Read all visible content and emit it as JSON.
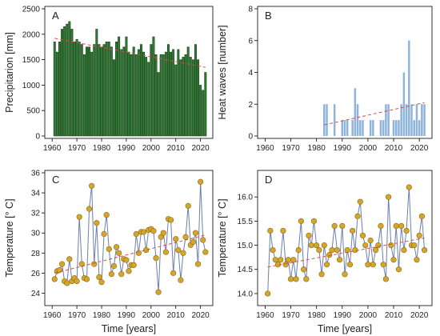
{
  "chart_data": [
    {
      "panel": "A",
      "type": "bar",
      "ylabel": "Precipitarion [mm]",
      "xlabel": "",
      "xlim": [
        1958,
        2024
      ],
      "ylim": [
        0,
        2500
      ],
      "xticks": [
        1960,
        1970,
        1980,
        1990,
        2000,
        2010,
        2020
      ],
      "yticks": [
        0,
        500,
        1000,
        1500,
        2000,
        2500
      ],
      "bar_color": "#2e7d32",
      "bar_edge": "#0f2e0f",
      "trend_color": "#d94a4a",
      "x": [
        1961,
        1962,
        1963,
        1964,
        1965,
        1966,
        1967,
        1968,
        1969,
        1970,
        1971,
        1972,
        1973,
        1974,
        1975,
        1976,
        1977,
        1978,
        1979,
        1980,
        1981,
        1982,
        1983,
        1984,
        1985,
        1986,
        1987,
        1988,
        1989,
        1990,
        1991,
        1992,
        1993,
        1994,
        1995,
        1996,
        1997,
        1998,
        1999,
        2000,
        2001,
        2002,
        2003,
        2004,
        2005,
        2006,
        2007,
        2008,
        2009,
        2010,
        2011,
        2012,
        2013,
        2014,
        2015,
        2016,
        2017,
        2018,
        2019,
        2020,
        2021,
        2022
      ],
      "values": [
        1850,
        1650,
        1850,
        2100,
        2150,
        2200,
        2250,
        2100,
        1850,
        1900,
        1850,
        1800,
        1600,
        1750,
        1750,
        1650,
        1800,
        2100,
        1800,
        1750,
        1800,
        1850,
        1850,
        1750,
        1500,
        1850,
        1950,
        1700,
        1750,
        1950,
        1650,
        1600,
        1750,
        1600,
        1700,
        1800,
        1650,
        1550,
        1450,
        1800,
        1950,
        1600,
        1250,
        1600,
        1600,
        1650,
        1800,
        1650,
        1700,
        1400,
        1700,
        1500,
        1550,
        1600,
        1750,
        1550,
        1500,
        1800,
        1500,
        1000,
        900,
        1250
      ],
      "trend": {
        "x": [
          1961,
          2022
        ],
        "y": [
          1920,
          1350
        ]
      }
    },
    {
      "panel": "B",
      "type": "bar",
      "ylabel": "Heat waves [number]",
      "xlabel": "",
      "xlim": [
        1958,
        2024
      ],
      "ylim": [
        0,
        8
      ],
      "xticks": [
        1960,
        1970,
        1980,
        1990,
        2000,
        2010,
        2020
      ],
      "yticks": [
        0,
        2,
        4,
        6,
        8
      ],
      "bar_color": "#8fb4db",
      "trend_color": "#d94a4a",
      "x": [
        1983,
        1984,
        1985,
        1986,
        1987,
        1988,
        1989,
        1990,
        1991,
        1992,
        1993,
        1994,
        1995,
        1996,
        1997,
        1998,
        1999,
        2000,
        2001,
        2002,
        2003,
        2004,
        2005,
        2006,
        2007,
        2008,
        2009,
        2010,
        2011,
        2012,
        2013,
        2014,
        2015,
        2016,
        2017,
        2018,
        2019,
        2020,
        2021,
        2022
      ],
      "values": [
        2,
        2,
        0,
        0,
        2,
        0,
        0,
        1,
        1,
        1,
        0,
        1,
        3,
        2,
        1,
        1,
        0,
        0,
        1,
        1,
        0,
        0,
        1,
        1,
        2,
        2,
        0,
        1,
        1,
        1,
        2,
        4,
        2,
        6,
        2,
        1,
        2,
        1,
        2,
        2
      ],
      "trend": {
        "x": [
          1983,
          2022
        ],
        "y": [
          0.7,
          2.1
        ]
      }
    },
    {
      "panel": "C",
      "type": "line",
      "ylabel": "Temperature [° C]",
      "xlabel": "Time [years]",
      "xlim": [
        1958,
        2024
      ],
      "ylim": [
        23,
        36
      ],
      "xticks": [
        1960,
        1970,
        1980,
        1990,
        2000,
        2010,
        2020
      ],
      "yticks": [
        24,
        26,
        28,
        30,
        32,
        34,
        36
      ],
      "line_color": "#6c7fae",
      "marker_fill": "#d4a72c",
      "marker_edge": "#8a6a10",
      "trend_color": "#d94a4a",
      "x": [
        1961,
        1962,
        1963,
        1964,
        1965,
        1966,
        1967,
        1968,
        1969,
        1970,
        1971,
        1972,
        1973,
        1974,
        1975,
        1976,
        1977,
        1978,
        1979,
        1980,
        1981,
        1982,
        1983,
        1984,
        1985,
        1986,
        1987,
        1988,
        1989,
        1990,
        1991,
        1992,
        1993,
        1994,
        1995,
        1996,
        1997,
        1998,
        1999,
        2000,
        2001,
        2002,
        2003,
        2004,
        2005,
        2006,
        2007,
        2008,
        2009,
        2010,
        2011,
        2012,
        2013,
        2014,
        2015,
        2016,
        2017,
        2018,
        2019,
        2020,
        2021,
        2022
      ],
      "values": [
        25.4,
        26.2,
        26.3,
        26.9,
        25.2,
        25.0,
        27.4,
        25.2,
        25.5,
        25.2,
        31.6,
        26.9,
        25.5,
        25.4,
        32.4,
        34.7,
        26.9,
        31.0,
        25.6,
        25.1,
        29.9,
        31.8,
        28.4,
        25.9,
        26.7,
        28.6,
        28.0,
        25.9,
        27.4,
        27.3,
        26.2,
        26.8,
        26.8,
        29.9,
        28.0,
        30.1,
        30.1,
        28.3,
        30.3,
        30.4,
        30.2,
        27.5,
        24.1,
        29.6,
        30.0,
        28.1,
        31.4,
        31.3,
        26.0,
        29.4,
        28.3,
        25.3,
        28.0,
        29.6,
        32.7,
        28.8,
        29.1,
        30.0,
        26.9,
        35.1,
        29.3,
        28.1
      ],
      "trend": {
        "x": [
          1961,
          2022
        ],
        "y": [
          26.0,
          29.8
        ]
      }
    },
    {
      "panel": "D",
      "type": "line",
      "ylabel": "Temperature [° C]",
      "xlabel": "Time [years]",
      "xlim": [
        1958,
        2024
      ],
      "ylim": [
        13.8,
        16.5
      ],
      "xticks": [
        1960,
        1970,
        1980,
        1990,
        2000,
        2010,
        2020
      ],
      "yticks": [
        14.0,
        14.5,
        15.0,
        15.5,
        16.0
      ],
      "line_color": "#6c7fae",
      "marker_fill": "#d4a72c",
      "marker_edge": "#8a6a10",
      "trend_color": "#d94a4a",
      "x": [
        1961,
        1962,
        1963,
        1964,
        1965,
        1966,
        1967,
        1968,
        1969,
        1970,
        1971,
        1972,
        1973,
        1974,
        1975,
        1976,
        1977,
        1978,
        1979,
        1980,
        1981,
        1982,
        1983,
        1984,
        1985,
        1986,
        1987,
        1988,
        1989,
        1990,
        1991,
        1992,
        1993,
        1994,
        1995,
        1996,
        1997,
        1998,
        1999,
        2000,
        2001,
        2002,
        2003,
        2004,
        2005,
        2006,
        2007,
        2008,
        2009,
        2010,
        2011,
        2012,
        2013,
        2014,
        2015,
        2016,
        2017,
        2018,
        2019,
        2020,
        2021,
        2022
      ],
      "values": [
        14.0,
        15.3,
        14.9,
        14.7,
        14.6,
        14.7,
        15.3,
        14.6,
        14.7,
        14.3,
        14.7,
        14.3,
        14.9,
        15.5,
        14.5,
        14.3,
        15.2,
        15.0,
        15.5,
        15.0,
        14.9,
        14.4,
        15.0,
        14.6,
        14.8,
        14.9,
        15.4,
        14.9,
        14.7,
        15.4,
        14.4,
        14.9,
        14.6,
        15.3,
        14.9,
        15.6,
        15.9,
        15.2,
        15.0,
        14.6,
        15.1,
        14.6,
        14.9,
        15.0,
        15.4,
        14.6,
        14.3,
        16.0,
        15.0,
        14.7,
        15.4,
        14.5,
        15.4,
        14.9,
        15.3,
        16.2,
        15.0,
        15.0,
        14.7,
        15.2,
        15.6,
        14.9
      ],
      "trend": {
        "x": [
          1961,
          2022
        ],
        "y": [
          14.55,
          15.15
        ]
      }
    }
  ]
}
